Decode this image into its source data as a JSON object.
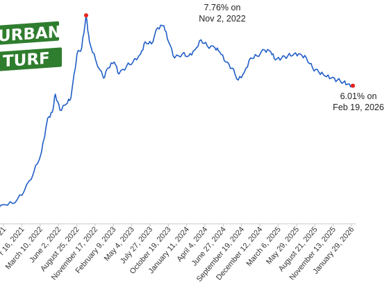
{
  "logo": {
    "line1": "URBAN",
    "line2": "TURF"
  },
  "annotations": {
    "peak_line1": "7.76% on",
    "peak_line2": "Nov 2, 2022",
    "latest_line1": "6.01% on",
    "latest_line2": "Feb 19, 2026"
  },
  "chart_data": {
    "type": "line",
    "series_color": "#1f5cc6",
    "marker_color": "#e8221e",
    "x_tick_labels": [
      "2021",
      "r 16, 2021",
      "March 10, 2022",
      "June 2, 2022",
      "August 25, 2022",
      "November 17, 2022",
      "February 9, 2023",
      "May 4, 2023",
      "July 27, 2023",
      "October 19, 2023",
      "January 11, 2024",
      "April 4, 2024",
      "June 27, 2024",
      "September 19, 2024",
      "December 12, 2024",
      "March 6, 2025",
      "May 29, 2025",
      "August 21, 2025",
      "November 13, 2025",
      "January 29, 2026"
    ],
    "x": [
      "2021-09-20",
      "2021-11-01",
      "2021-12-16",
      "2022-01-27",
      "2022-03-10",
      "2022-04-14",
      "2022-05-12",
      "2022-06-02",
      "2022-06-16",
      "2022-07-07",
      "2022-08-04",
      "2022-08-25",
      "2022-09-22",
      "2022-10-13",
      "2022-11-02",
      "2022-11-17",
      "2022-12-15",
      "2023-01-19",
      "2023-02-09",
      "2023-03-09",
      "2023-03-30",
      "2023-05-04",
      "2023-06-01",
      "2023-07-06",
      "2023-07-27",
      "2023-08-24",
      "2023-09-21",
      "2023-10-19",
      "2023-11-09",
      "2023-12-07",
      "2024-01-11",
      "2024-02-08",
      "2024-03-07",
      "2024-04-04",
      "2024-05-02",
      "2024-06-06",
      "2024-06-27",
      "2024-07-25",
      "2024-08-22",
      "2024-09-19",
      "2024-10-17",
      "2024-11-14",
      "2024-12-12",
      "2025-01-16",
      "2025-02-13",
      "2025-03-06",
      "2025-04-03",
      "2025-05-01",
      "2025-05-29",
      "2025-06-26",
      "2025-07-24",
      "2025-08-21",
      "2025-09-18",
      "2025-10-16",
      "2025-11-13",
      "2025-12-11",
      "2026-01-08",
      "2026-01-29",
      "2026-02-19"
    ],
    "y": [
      2.95,
      3.05,
      3.1,
      3.4,
      3.85,
      4.35,
      5.2,
      5.35,
      5.8,
      5.4,
      5.55,
      5.7,
      6.8,
      6.95,
      7.76,
      7.1,
      6.65,
      6.2,
      6.45,
      6.6,
      6.3,
      6.5,
      6.6,
      6.8,
      7.1,
      7.05,
      7.45,
      7.5,
      7.1,
      6.7,
      6.8,
      6.75,
      6.9,
      7.15,
      7.0,
      6.95,
      6.85,
      6.6,
      6.45,
      6.15,
      6.35,
      6.7,
      6.75,
      6.9,
      6.85,
      6.65,
      6.7,
      6.75,
      6.8,
      6.8,
      6.7,
      6.45,
      6.35,
      6.25,
      6.2,
      6.15,
      6.1,
      6.05,
      6.01
    ]
  }
}
